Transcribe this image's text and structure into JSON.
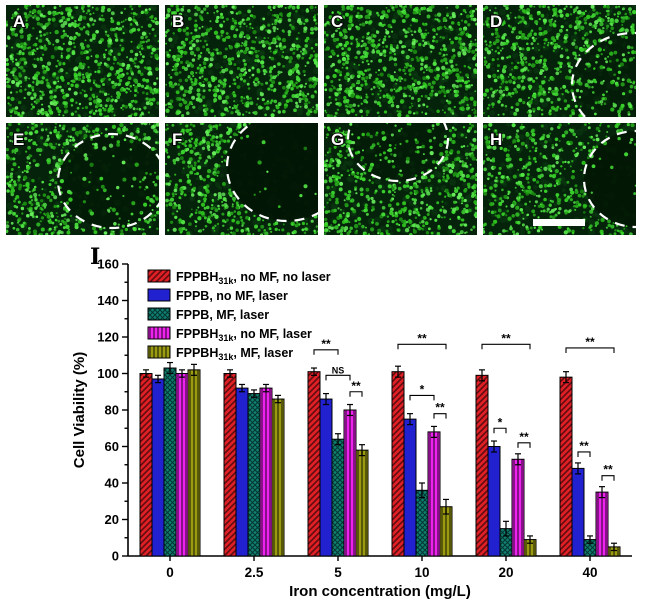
{
  "figure": {
    "chart_panel_label": "I",
    "panels": [
      {
        "label": "A",
        "dashed_region": false,
        "scale_bar": false
      },
      {
        "label": "B",
        "dashed_region": false,
        "scale_bar": false
      },
      {
        "label": "C",
        "dashed_region": false,
        "scale_bar": false
      },
      {
        "label": "D",
        "dashed_region": true,
        "scale_bar": false
      },
      {
        "label": "E",
        "dashed_region": true,
        "scale_bar": false
      },
      {
        "label": "F",
        "dashed_region": true,
        "scale_bar": false
      },
      {
        "label": "G",
        "dashed_region": true,
        "scale_bar": false
      },
      {
        "label": "H",
        "dashed_region": true,
        "scale_bar": true
      }
    ]
  },
  "chart_data": {
    "type": "bar",
    "title": "",
    "xlabel": "Iron concentration (mg/L)",
    "ylabel": "Cell Viability (%)",
    "ylim": [
      0,
      160
    ],
    "ytick_step": 20,
    "grid": false,
    "legend_position": "top-left",
    "categories": [
      "0",
      "2.5",
      "5",
      "10",
      "20",
      "40"
    ],
    "series": [
      {
        "name": "FPPBH31k, no MF, no laser",
        "color": "#e01f26",
        "hatch": "diag-up",
        "values": [
          100,
          100,
          101,
          101,
          99,
          98
        ],
        "errors": [
          2,
          2,
          2,
          3,
          3,
          3
        ]
      },
      {
        "name": "FPPB, no MF, laser",
        "color": "#2121cf",
        "hatch": "solid",
        "values": [
          97,
          92,
          86,
          75,
          60,
          48
        ],
        "errors": [
          2,
          2,
          3,
          3,
          3,
          3
        ]
      },
      {
        "name": "FPPB, MF, laser",
        "color": "#0e8173",
        "hatch": "cross",
        "values": [
          103,
          89,
          64,
          36,
          15,
          9
        ],
        "errors": [
          3,
          2,
          3,
          4,
          4,
          2
        ]
      },
      {
        "name": "FPPBH31k, no MF, laser",
        "color": "#ee22ee",
        "hatch": "vertical",
        "values": [
          100,
          92,
          80,
          68,
          53,
          35
        ],
        "errors": [
          2,
          2,
          3,
          3,
          3,
          3
        ]
      },
      {
        "name": "FPPBH31k, MF, laser",
        "color": "#9b9b12",
        "hatch": "vertical",
        "values": [
          102,
          86,
          58,
          27,
          9,
          5
        ],
        "errors": [
          3,
          2,
          3,
          4,
          2,
          2
        ]
      }
    ],
    "annotations": [
      {
        "group": 2,
        "from": 0,
        "to": 2,
        "label": "**",
        "y": 113
      },
      {
        "group": 2,
        "from": 1,
        "to": 3,
        "label": "NS",
        "y": 99
      },
      {
        "group": 2,
        "from": 3,
        "to": 4,
        "label": "**",
        "y": 90
      },
      {
        "group": 3,
        "from": 0,
        "to": 4,
        "label": "**",
        "y": 116
      },
      {
        "group": 3,
        "from": 1,
        "to": 3,
        "label": "*",
        "y": 88
      },
      {
        "group": 3,
        "from": 3,
        "to": 4,
        "label": "**",
        "y": 78
      },
      {
        "group": 4,
        "from": 0,
        "to": 4,
        "label": "**",
        "y": 116
      },
      {
        "group": 4,
        "from": 1,
        "to": 2,
        "label": "*",
        "y": 70
      },
      {
        "group": 4,
        "from": 3,
        "to": 4,
        "label": "**",
        "y": 62
      },
      {
        "group": 5,
        "from": 0,
        "to": 4,
        "label": "**",
        "y": 114
      },
      {
        "group": 5,
        "from": 1,
        "to": 2,
        "label": "**",
        "y": 57
      },
      {
        "group": 5,
        "from": 3,
        "to": 4,
        "label": "**",
        "y": 44
      }
    ]
  }
}
